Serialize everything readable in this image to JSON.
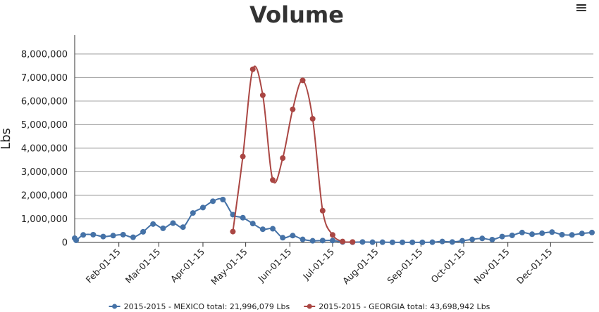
{
  "chart_data": {
    "type": "line",
    "title": "Volume",
    "ylabel": "Lbs",
    "xlabel": "",
    "x_ticks": [
      "Feb-01-15",
      "Mar-01-15",
      "Apr-01-15",
      "May-01-15",
      "Jun-01-15",
      "Jul-01-15",
      "Aug-01-15",
      "Sep-01-15",
      "Oct-01-15",
      "Nov-01-15",
      "Dec-01-15"
    ],
    "y_ticks": [
      "0",
      "1,000,000",
      "2,000,000",
      "3,000,000",
      "4,000,000",
      "5,000,000",
      "6,000,000",
      "7,000,000",
      "8,000,000"
    ],
    "xlim": [
      "2015-01-01",
      "2015-12-31"
    ],
    "ylim": [
      0,
      8800000
    ],
    "grid": true,
    "legend_position": "bottom",
    "series": [
      {
        "name": "2015-2015 - MEXICO total: 21,996,079 Lbs",
        "color": "#4572A7",
        "points": [
          [
            "2015-01-01",
            180000
          ],
          [
            "2015-01-02",
            90000
          ],
          [
            "2015-01-07",
            320000
          ],
          [
            "2015-01-14",
            330000
          ],
          [
            "2015-01-21",
            250000
          ],
          [
            "2015-01-28",
            290000
          ],
          [
            "2015-02-04",
            330000
          ],
          [
            "2015-02-11",
            220000
          ],
          [
            "2015-02-18",
            450000
          ],
          [
            "2015-02-25",
            780000
          ],
          [
            "2015-03-04",
            600000
          ],
          [
            "2015-03-11",
            820000
          ],
          [
            "2015-03-18",
            650000
          ],
          [
            "2015-03-25",
            1250000
          ],
          [
            "2015-04-01",
            1480000
          ],
          [
            "2015-04-08",
            1750000
          ],
          [
            "2015-04-15",
            1820000
          ],
          [
            "2015-04-22",
            1180000
          ],
          [
            "2015-04-29",
            1050000
          ],
          [
            "2015-05-06",
            800000
          ],
          [
            "2015-05-13",
            560000
          ],
          [
            "2015-05-20",
            580000
          ],
          [
            "2015-05-27",
            200000
          ],
          [
            "2015-06-03",
            290000
          ],
          [
            "2015-06-10",
            130000
          ],
          [
            "2015-06-17",
            70000
          ],
          [
            "2015-06-24",
            80000
          ],
          [
            "2015-07-01",
            80000
          ],
          [
            "2015-07-08",
            20000
          ],
          [
            "2015-07-15",
            10000
          ],
          [
            "2015-07-22",
            20000
          ],
          [
            "2015-07-29",
            10000
          ],
          [
            "2015-08-05",
            10000
          ],
          [
            "2015-08-12",
            5000
          ],
          [
            "2015-08-19",
            5000
          ],
          [
            "2015-08-26",
            5000
          ],
          [
            "2015-09-02",
            5000
          ],
          [
            "2015-09-09",
            10000
          ],
          [
            "2015-09-16",
            40000
          ],
          [
            "2015-09-23",
            20000
          ],
          [
            "2015-09-30",
            70000
          ],
          [
            "2015-10-07",
            130000
          ],
          [
            "2015-10-14",
            170000
          ],
          [
            "2015-10-21",
            120000
          ],
          [
            "2015-10-28",
            250000
          ],
          [
            "2015-11-04",
            300000
          ],
          [
            "2015-11-11",
            420000
          ],
          [
            "2015-11-18",
            350000
          ],
          [
            "2015-11-25",
            390000
          ],
          [
            "2015-12-02",
            440000
          ],
          [
            "2015-12-09",
            330000
          ],
          [
            "2015-12-16",
            320000
          ],
          [
            "2015-12-23",
            380000
          ],
          [
            "2015-12-30",
            420000
          ]
        ]
      },
      {
        "name": "2015-2015 - GEORGIA total: 43,698,942 Lbs",
        "color": "#AA4643",
        "points": [
          [
            "2015-04-22",
            460000
          ],
          [
            "2015-04-29",
            3650000
          ],
          [
            "2015-05-06",
            7350000
          ],
          [
            "2015-05-13",
            6250000
          ],
          [
            "2015-05-20",
            2650000
          ],
          [
            "2015-05-27",
            3580000
          ],
          [
            "2015-06-03",
            5650000
          ],
          [
            "2015-06-10",
            6880000
          ],
          [
            "2015-06-17",
            5250000
          ],
          [
            "2015-06-24",
            1350000
          ],
          [
            "2015-07-01",
            320000
          ],
          [
            "2015-07-08",
            40000
          ],
          [
            "2015-07-15",
            20000
          ]
        ]
      }
    ]
  },
  "menu": {
    "icon": "hamburger-icon",
    "glyph": "≡"
  }
}
